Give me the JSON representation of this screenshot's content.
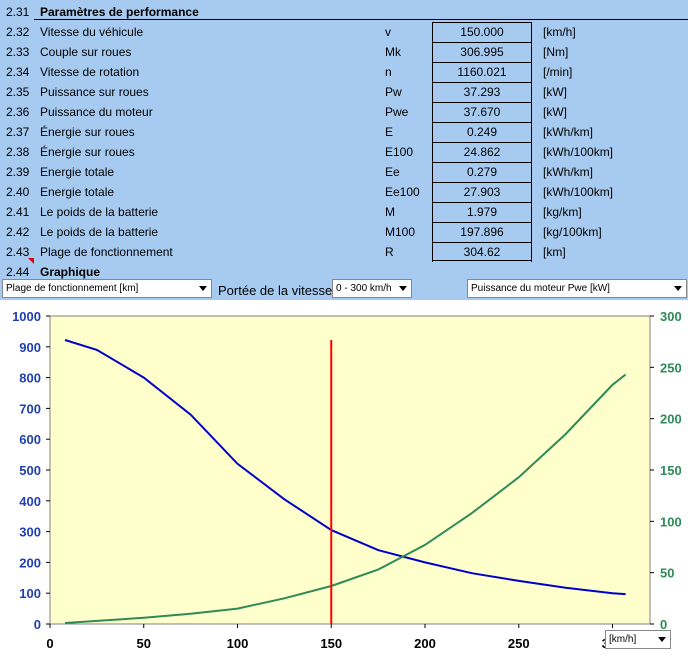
{
  "section": {
    "num": "2.31",
    "title": "Paramètres de performance"
  },
  "params": [
    {
      "num": "2.32",
      "label": "Vitesse du véhicule",
      "sym": "v",
      "value": "150.000",
      "unit": "[km/h]"
    },
    {
      "num": "2.33",
      "label": "Couple sur roues",
      "sym": "Mk",
      "value": "306.995",
      "unit": "[Nm]"
    },
    {
      "num": "2.34",
      "label": "Vitesse de rotation",
      "sym": "n",
      "value": "1160.021",
      "unit": "[/min]"
    },
    {
      "num": "2.35",
      "label": "Puissance sur roues",
      "sym": "Pw",
      "value": "37.293",
      "unit": "[kW]"
    },
    {
      "num": "2.36",
      "label": "Puissance du moteur",
      "sym": "Pwe",
      "value": "37.670",
      "unit": "[kW]"
    },
    {
      "num": "2.37",
      "label": "Énergie sur roues",
      "sym": "E",
      "value": "0.249",
      "unit": "[kWh/km]"
    },
    {
      "num": "2.38",
      "label": "Énergie sur roues",
      "sym": "E100",
      "value": "24.862",
      "unit": "[kWh/100km]"
    },
    {
      "num": "2.39",
      "label": "Energie totale",
      "sym": "Ee",
      "value": "0.279",
      "unit": "[kWh/km]"
    },
    {
      "num": "2.40",
      "label": "Energie totale",
      "sym": "Ee100",
      "value": "27.903",
      "unit": "[kWh/100km]"
    },
    {
      "num": "2.41",
      "label": "Le poids de la batterie",
      "sym": "M",
      "value": "1.979",
      "unit": "[kg/km]"
    },
    {
      "num": "2.42",
      "label": "Le poids de la batterie",
      "sym": "M100",
      "value": "197.896",
      "unit": "[kg/100km]"
    },
    {
      "num": "2.43",
      "label": "Plage de fonctionnement",
      "sym": "R",
      "value": "304.62",
      "unit": "[km]"
    }
  ],
  "graph_section": {
    "num": "2.44",
    "title": "Graphique"
  },
  "controls": {
    "left_select": "Plage de fonctionnement [km]",
    "speed_range_label": "Portée de la vitesse",
    "speed_range_select": "0 - 300 km/h",
    "right_select": "Puissance du moteur Pwe [kW]",
    "x_unit_select": "[km/h]"
  },
  "colors": {
    "background": "#a6caf0",
    "plot_bg": "#ffffcc",
    "left_series": "#0000cc",
    "right_series": "#2e8b57",
    "marker": "#ff0000",
    "left_axis": "#1f3fb0",
    "right_axis": "#2e8b57"
  },
  "chart_data": {
    "type": "line",
    "x_ticks": [
      0,
      50,
      100,
      150,
      200,
      250,
      300
    ],
    "xlim": [
      0,
      320
    ],
    "y_left": {
      "lim": [
        0,
        1000
      ],
      "ticks": [
        0,
        100,
        200,
        300,
        400,
        500,
        600,
        700,
        800,
        900,
        1000
      ]
    },
    "y_right": {
      "lim": [
        0,
        300
      ],
      "ticks": [
        0,
        50,
        100,
        150,
        200,
        250,
        300
      ]
    },
    "marker_x": 150,
    "series": [
      {
        "axis": "left",
        "x": [
          8,
          25,
          50,
          75,
          100,
          125,
          150,
          175,
          200,
          225,
          250,
          275,
          300,
          307
        ],
        "values": [
          922,
          890,
          800,
          680,
          520,
          405,
          305,
          240,
          200,
          165,
          140,
          118,
          100,
          97
        ]
      },
      {
        "axis": "right",
        "x": [
          8,
          25,
          50,
          75,
          100,
          125,
          150,
          175,
          200,
          225,
          250,
          275,
          300,
          307
        ],
        "values": [
          1,
          3,
          6,
          10,
          15,
          25,
          37,
          53,
          77,
          108,
          143,
          185,
          233,
          243
        ]
      }
    ]
  }
}
